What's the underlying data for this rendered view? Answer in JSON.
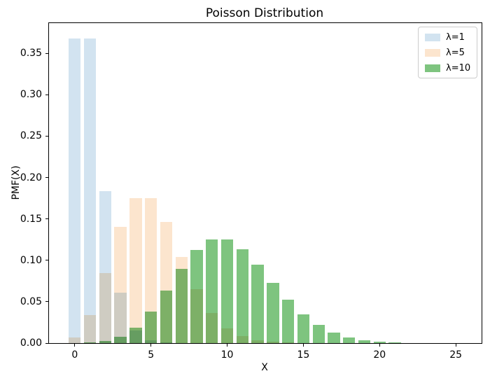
{
  "title": "Poisson Distribution",
  "xlabel": "X",
  "ylabel": "PMF(X)",
  "legend": {
    "position": "upper right",
    "items": [
      {
        "label": "λ=1",
        "color": "#D2E3F0"
      },
      {
        "label": "λ=5",
        "color": "#FCE5CE"
      },
      {
        "label": "λ=10",
        "color": "#7EC47F"
      }
    ]
  },
  "colors": {
    "lambda1_bar": "#D2E3F0",
    "lambda5_bar": "#FCE5CE",
    "lambda10_bar": "#7EC47F",
    "spine": "#000000",
    "legend_border": "#cccccc",
    "background": "#ffffff"
  },
  "chart_data": {
    "type": "bar",
    "title": "Poisson Distribution",
    "xlabel": "X",
    "ylabel": "PMF(X)",
    "grid": false,
    "legend_position": "upper right",
    "bar_width": 0.8,
    "overlap_blend": "multiply",
    "xlim": [
      -1.69,
      26.69
    ],
    "ylim": [
      0,
      0.3866
    ],
    "xticks": [
      0,
      5,
      10,
      15,
      20,
      25
    ],
    "yticks": [
      0.0,
      0.05,
      0.1,
      0.15,
      0.2,
      0.25,
      0.3,
      0.35
    ],
    "x": [
      0,
      1,
      2,
      3,
      4,
      5,
      6,
      7,
      8,
      9,
      10,
      11,
      12,
      13,
      14,
      15,
      16,
      17,
      18,
      19,
      20,
      21,
      22,
      23,
      24,
      25
    ],
    "series": [
      {
        "name": "λ=1",
        "key": "lambda1",
        "color": "#D2E3F0",
        "values": [
          0.36788,
          0.36788,
          0.18394,
          0.06131,
          0.01533,
          0.00307,
          0.00051,
          7e-05,
          1e-05,
          0,
          0,
          0,
          0,
          0,
          0,
          0,
          0,
          0,
          0,
          0,
          0,
          0,
          0,
          0,
          0,
          0
        ]
      },
      {
        "name": "λ=5",
        "key": "lambda5",
        "color": "#FCE5CE",
        "values": [
          0.00674,
          0.03369,
          0.08422,
          0.14037,
          0.17547,
          0.17547,
          0.14622,
          0.10444,
          0.06528,
          0.03627,
          0.01813,
          0.00824,
          0.00343,
          0.00132,
          0.00047,
          0.00016,
          5e-05,
          1e-05,
          0,
          0,
          0,
          0,
          0,
          0,
          0,
          0
        ]
      },
      {
        "name": "λ=10",
        "key": "lambda10",
        "color": "#7EC47F",
        "values": [
          5e-05,
          0.00045,
          0.00227,
          0.00757,
          0.01892,
          0.03783,
          0.06306,
          0.09008,
          0.1126,
          0.12511,
          0.12511,
          0.11374,
          0.09478,
          0.07291,
          0.05208,
          0.03472,
          0.0217,
          0.01276,
          0.00709,
          0.00373,
          0.00187,
          0.00089,
          0.0004,
          0.00018,
          7e-05,
          3e-05
        ]
      }
    ]
  }
}
